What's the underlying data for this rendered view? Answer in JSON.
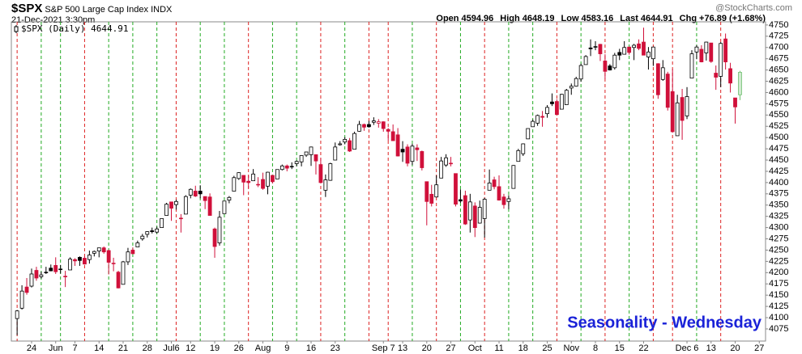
{
  "header": {
    "symbol": "$SPX",
    "name": "S&P 500 Large Cap Index",
    "exchange": "INDX",
    "date": "21-Dec-2021 3:30pm",
    "quote": [
      [
        "Open",
        "4594.96"
      ],
      [
        "High",
        "4648.19"
      ],
      [
        "Low",
        "4583.16"
      ],
      [
        "Last",
        "4644.91"
      ],
      [
        "Chg",
        "+76.89 (+1.68%)"
      ]
    ],
    "source": "@StockCharts.com"
  },
  "chart_data": {
    "type": "candlestick",
    "legend": "$SPX (Daily) 4644.91",
    "annotation": "Seasonality - Wednesday",
    "up_color": "#000000",
    "down_color": "#d0103a",
    "last_color": "#6fbf6f",
    "annotation_color": "#1a22d8",
    "xlim": [
      -1.2,
      155.3
    ],
    "ylim": [
      4048,
      4757
    ],
    "xticks": [
      {
        "value": 3,
        "label": "24"
      },
      {
        "value": 8,
        "label": "Jun"
      },
      {
        "value": 12,
        "label": "7"
      },
      {
        "value": 17,
        "label": "14"
      },
      {
        "value": 22,
        "label": "21"
      },
      {
        "value": 27,
        "label": "28"
      },
      {
        "value": 32,
        "label": "Jul6"
      },
      {
        "value": 36,
        "label": "12"
      },
      {
        "value": 41,
        "label": "19"
      },
      {
        "value": 46,
        "label": "26"
      },
      {
        "value": 51,
        "label": "Aug"
      },
      {
        "value": 56,
        "label": "9"
      },
      {
        "value": 61,
        "label": "16"
      },
      {
        "value": 66,
        "label": "23"
      },
      {
        "value": 76,
        "label": "Sep 7"
      },
      {
        "value": 80,
        "label": "13"
      },
      {
        "value": 85,
        "label": "20"
      },
      {
        "value": 90,
        "label": "27"
      },
      {
        "value": 95,
        "label": "Oct"
      },
      {
        "value": 100,
        "label": "11"
      },
      {
        "value": 105,
        "label": "18"
      },
      {
        "value": 110,
        "label": "25"
      },
      {
        "value": 115,
        "label": "Nov"
      },
      {
        "value": 120,
        "label": "8"
      },
      {
        "value": 125,
        "label": "15"
      },
      {
        "value": 130,
        "label": "22"
      },
      {
        "value": 139,
        "label": "Dec 6"
      },
      {
        "value": 144,
        "label": "13"
      },
      {
        "value": 149,
        "label": "20"
      },
      {
        "value": 154,
        "label": "27"
      }
    ],
    "yticks": [
      4075,
      4100,
      4125,
      4150,
      4175,
      4200,
      4225,
      4250,
      4275,
      4300,
      4325,
      4350,
      4375,
      4400,
      4425,
      4450,
      4475,
      4500,
      4525,
      4550,
      4575,
      4600,
      4625,
      4650,
      4675,
      4700,
      4725,
      4750
    ],
    "wednesday_lines": {
      "x": [
        0,
        5,
        9,
        14,
        19,
        24,
        29,
        33,
        38,
        43,
        48,
        53,
        58,
        63,
        68,
        73,
        77,
        82,
        87,
        92,
        97,
        102,
        107,
        112,
        117,
        122,
        127,
        132,
        136,
        141,
        146
      ],
      "colors": [
        "#d22",
        "#2a2",
        "#2a2",
        "#d22",
        "#2a2",
        "#2a2",
        "#2a2",
        "#d22",
        "#2a2",
        "#2a2",
        "#d22",
        "#2a2",
        "#2a2",
        "#d22",
        "#2a2",
        "#d22",
        "#d22",
        "#2a2",
        "#d22",
        "#2a2",
        "#d22",
        "#2a2",
        "#2a2",
        "#d22",
        "#2a2",
        "#d22",
        "#2a2",
        "#d22",
        "#d22",
        "#2a2",
        "#d22"
      ]
    },
    "candles": [
      [
        4098,
        4117,
        4061,
        4115
      ],
      [
        4121,
        4172,
        4118,
        4159
      ],
      [
        4168,
        4188,
        4151,
        4156
      ],
      [
        4170,
        4209,
        4167,
        4197
      ],
      [
        4205,
        4213,
        4182,
        4188
      ],
      [
        4191,
        4202,
        4187,
        4195
      ],
      [
        4201,
        4213,
        4197,
        4200
      ],
      [
        4210,
        4218,
        4203,
        4204
      ],
      [
        4216,
        4234,
        4197,
        4202
      ],
      [
        4207,
        4217,
        4198,
        4208
      ],
      [
        4191,
        4204,
        4168,
        4192
      ],
      [
        4206,
        4234,
        4206,
        4230
      ],
      [
        4229,
        4232,
        4215,
        4226
      ],
      [
        4234,
        4236,
        4215,
        4227
      ],
      [
        4232,
        4237,
        4218,
        4219
      ],
      [
        4229,
        4249,
        4220,
        4239
      ],
      [
        4243,
        4249,
        4236,
        4247
      ],
      [
        4248,
        4255,
        4234,
        4255
      ],
      [
        4255,
        4258,
        4242,
        4246
      ],
      [
        4249,
        4251,
        4196,
        4223
      ],
      [
        4220,
        4233,
        4203,
        4221
      ],
      [
        4201,
        4204,
        4165,
        4166
      ],
      [
        4174,
        4226,
        4174,
        4224
      ],
      [
        4224,
        4255,
        4217,
        4246
      ],
      [
        4250,
        4256,
        4241,
        4242
      ],
      [
        4257,
        4271,
        4257,
        4266
      ],
      [
        4275,
        4286,
        4271,
        4281
      ],
      [
        4285,
        4292,
        4278,
        4291
      ],
      [
        4293,
        4300,
        4287,
        4291
      ],
      [
        4290,
        4302,
        4287,
        4297
      ],
      [
        4300,
        4320,
        4300,
        4320
      ],
      [
        4327,
        4355,
        4327,
        4352
      ],
      [
        4357,
        4357,
        4315,
        4343
      ],
      [
        4351,
        4362,
        4340,
        4358
      ],
      [
        4321,
        4330,
        4289,
        4320
      ],
      [
        4330,
        4372,
        4330,
        4369
      ],
      [
        4372,
        4387,
        4365,
        4385
      ],
      [
        4381,
        4393,
        4368,
        4370
      ],
      [
        4381,
        4394,
        4365,
        4375
      ],
      [
        4369,
        4369,
        4341,
        4360
      ],
      [
        4368,
        4376,
        4327,
        4327
      ],
      [
        4297,
        4300,
        4233,
        4258
      ],
      [
        4266,
        4337,
        4260,
        4323
      ],
      [
        4331,
        4359,
        4331,
        4359
      ],
      [
        4361,
        4370,
        4354,
        4367
      ],
      [
        4381,
        4415,
        4381,
        4411
      ],
      [
        4409,
        4423,
        4406,
        4422
      ],
      [
        4416,
        4416,
        4372,
        4401
      ],
      [
        4403,
        4416,
        4387,
        4400
      ],
      [
        4404,
        4430,
        4404,
        4419
      ],
      [
        4396,
        4412,
        4390,
        4395
      ],
      [
        4407,
        4422,
        4384,
        4387
      ],
      [
        4392,
        4424,
        4374,
        4423
      ],
      [
        4416,
        4416,
        4398,
        4402
      ],
      [
        4408,
        4429,
        4408,
        4429
      ],
      [
        4429,
        4440,
        4427,
        4437
      ],
      [
        4437,
        4440,
        4425,
        4432
      ],
      [
        4436,
        4445,
        4430,
        4436
      ],
      [
        4442,
        4449,
        4436,
        4447
      ],
      [
        4446,
        4461,
        4436,
        4460
      ],
      [
        4461,
        4468,
        4457,
        4468
      ],
      [
        4462,
        4480,
        4437,
        4479
      ],
      [
        4462,
        4462,
        4418,
        4448
      ],
      [
        4440,
        4454,
        4400,
        4400
      ],
      [
        4383,
        4418,
        4368,
        4406
      ],
      [
        4405,
        4444,
        4404,
        4442
      ],
      [
        4450,
        4489,
        4450,
        4479
      ],
      [
        4484,
        4492,
        4482,
        4486
      ],
      [
        4490,
        4501,
        4485,
        4496
      ],
      [
        4493,
        4499,
        4468,
        4470
      ],
      [
        4474,
        4513,
        4474,
        4509
      ],
      [
        4514,
        4537,
        4513,
        4529
      ],
      [
        4529,
        4531,
        4515,
        4523
      ],
      [
        4529,
        4537,
        4522,
        4524
      ],
      [
        4534,
        4545,
        4528,
        4537
      ],
      [
        4532,
        4541,
        4522,
        4535
      ],
      [
        4535,
        4536,
        4513,
        4520
      ],
      [
        4518,
        4521,
        4493,
        4514
      ],
      [
        4513,
        4529,
        4493,
        4493
      ],
      [
        4506,
        4521,
        4458,
        4459
      ],
      [
        4474,
        4492,
        4446,
        4468
      ],
      [
        4479,
        4485,
        4436,
        4443
      ],
      [
        4447,
        4486,
        4439,
        4481
      ],
      [
        4477,
        4485,
        4448,
        4473
      ],
      [
        4469,
        4471,
        4427,
        4433
      ],
      [
        4402,
        4402,
        4305,
        4358
      ],
      [
        4374,
        4395,
        4347,
        4354
      ],
      [
        4368,
        4416,
        4367,
        4395
      ],
      [
        4410,
        4457,
        4410,
        4448
      ],
      [
        4439,
        4463,
        4435,
        4455
      ],
      [
        4443,
        4457,
        4436,
        4443
      ],
      [
        4420,
        4420,
        4347,
        4352
      ],
      [
        4362,
        4385,
        4355,
        4359
      ],
      [
        4371,
        4382,
        4306,
        4308
      ],
      [
        4317,
        4375,
        4289,
        4357
      ],
      [
        4348,
        4356,
        4279,
        4300
      ],
      [
        4310,
        4360,
        4309,
        4345
      ],
      [
        4320,
        4366,
        4278,
        4363
      ],
      [
        4383,
        4429,
        4383,
        4399
      ],
      [
        4406,
        4413,
        4385,
        4391
      ],
      [
        4391,
        4416,
        4360,
        4361
      ],
      [
        4368,
        4375,
        4342,
        4351
      ],
      [
        4358,
        4372,
        4341,
        4364
      ],
      [
        4387,
        4439,
        4387,
        4438
      ],
      [
        4447,
        4475,
        4447,
        4471
      ],
      [
        4464,
        4487,
        4459,
        4486
      ],
      [
        4497,
        4520,
        4497,
        4520
      ],
      [
        4524,
        4540,
        4524,
        4536
      ],
      [
        4532,
        4551,
        4526,
        4549
      ],
      [
        4547,
        4559,
        4524,
        4545
      ],
      [
        4553,
        4572,
        4544,
        4567
      ],
      [
        4579,
        4598,
        4570,
        4575
      ],
      [
        4580,
        4585,
        4551,
        4551
      ],
      [
        4563,
        4597,
        4563,
        4596
      ],
      [
        4573,
        4608,
        4573,
        4605
      ],
      [
        4610,
        4620,
        4595,
        4614
      ],
      [
        4614,
        4635,
        4613,
        4631
      ],
      [
        4630,
        4664,
        4624,
        4660
      ],
      [
        4662,
        4683,
        4662,
        4680
      ],
      [
        4699,
        4718,
        4681,
        4697
      ],
      [
        4702,
        4714,
        4694,
        4701
      ],
      [
        4707,
        4708,
        4670,
        4686
      ],
      [
        4670,
        4685,
        4630,
        4647
      ],
      [
        4659,
        4663,
        4649,
        4650
      ],
      [
        4655,
        4688,
        4651,
        4683
      ],
      [
        4689,
        4697,
        4672,
        4683
      ],
      [
        4685,
        4714,
        4685,
        4700
      ],
      [
        4701,
        4701,
        4684,
        4689
      ],
      [
        4700,
        4708,
        4672,
        4705
      ],
      [
        4708,
        4718,
        4694,
        4698
      ],
      [
        4712,
        4744,
        4683,
        4683
      ],
      [
        4679,
        4701,
        4651,
        4690
      ],
      [
        4675,
        4702,
        4659,
        4701
      ],
      [
        4664,
        4665,
        4586,
        4595
      ],
      [
        4629,
        4672,
        4626,
        4655
      ],
      [
        4641,
        4646,
        4560,
        4567
      ],
      [
        4602,
        4652,
        4511,
        4513
      ],
      [
        4504,
        4595,
        4504,
        4577
      ],
      [
        4589,
        4608,
        4495,
        4538
      ],
      [
        4548,
        4612,
        4541,
        4591
      ],
      [
        4632,
        4694,
        4632,
        4686
      ],
      [
        4690,
        4705,
        4674,
        4701
      ],
      [
        4696,
        4705,
        4667,
        4668
      ],
      [
        4688,
        4713,
        4671,
        4712
      ],
      [
        4710,
        4710,
        4666,
        4669
      ],
      [
        4643,
        4660,
        4606,
        4634
      ],
      [
        4636,
        4712,
        4612,
        4709
      ],
      [
        4719,
        4731,
        4651,
        4668
      ],
      [
        4653,
        4666,
        4600,
        4621
      ],
      [
        4588,
        4588,
        4531,
        4568
      ],
      [
        4594.96,
        4648.19,
        4583.16,
        4644.91
      ]
    ]
  }
}
